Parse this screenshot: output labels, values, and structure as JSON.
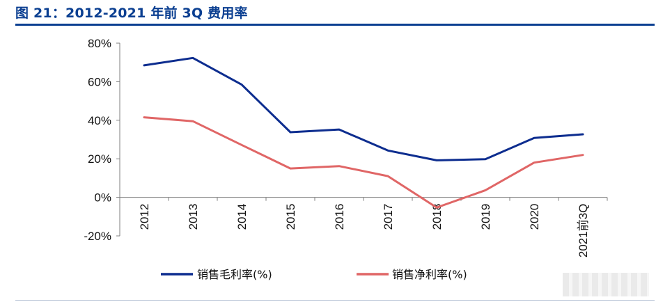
{
  "figure": {
    "title": "图 21：2012-2021 年前 3Q 费用率"
  },
  "chart_data": {
    "type": "line",
    "categories": [
      "2012",
      "2013",
      "2014",
      "2015",
      "2016",
      "2017",
      "2018",
      "2019",
      "2020",
      "2021前3Q"
    ],
    "series": [
      {
        "name": "销售毛利率(%)",
        "color": "#0d2d8f",
        "values": [
          68.5,
          72.3,
          58.5,
          33.8,
          35.2,
          24.3,
          19.2,
          19.8,
          30.8,
          32.7
        ]
      },
      {
        "name": "销售净利率(%)",
        "color": "#e06666",
        "values": [
          41.5,
          39.5,
          27.2,
          15.0,
          16.2,
          11.0,
          -5.3,
          3.7,
          18.0,
          22.0
        ]
      }
    ],
    "ylim": [
      -20,
      80
    ],
    "yticks": [
      -20,
      0,
      20,
      40,
      60,
      80
    ],
    "ytick_labels": [
      "-20%",
      "0%",
      "20%",
      "40%",
      "60%",
      "80%"
    ],
    "xlabel": "",
    "ylabel": "",
    "grid": false,
    "legend_position": "bottom"
  }
}
